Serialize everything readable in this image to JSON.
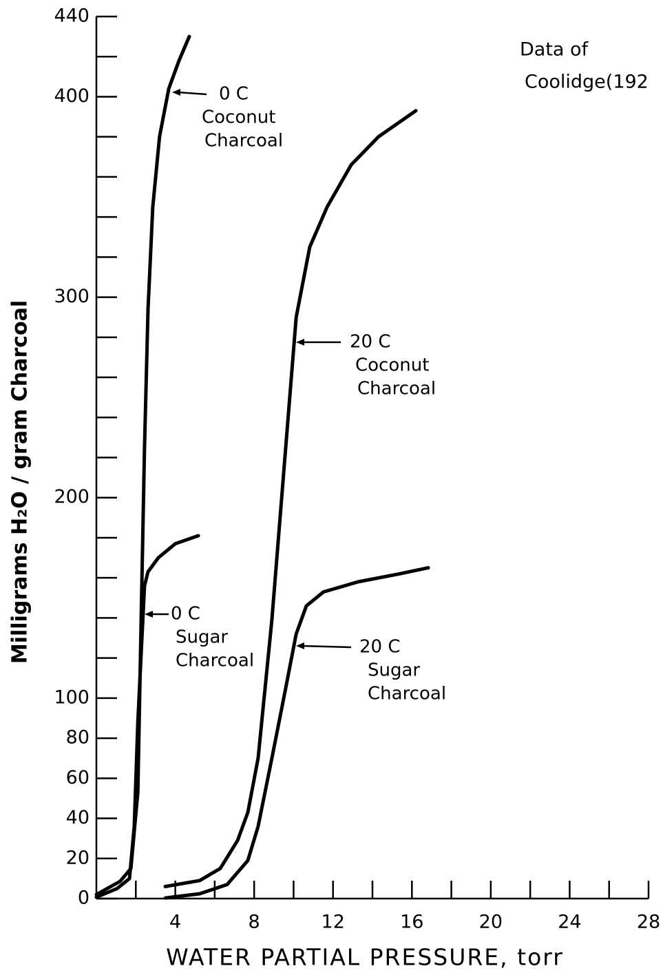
{
  "chart_data": {
    "type": "line",
    "xlabel": "WATER PARTIAL PRESSURE, torr",
    "ylabel": "Milligrams H₂O / gram Charcoal",
    "note": [
      "Data of",
      "Coolidge(192"
    ],
    "xlim": [
      0,
      28
    ],
    "xticks": [
      4,
      8,
      12,
      16,
      20,
      24,
      28
    ],
    "xminor": [
      2,
      6,
      10,
      14,
      18,
      22,
      26
    ],
    "ylim": [
      0,
      440
    ],
    "yticks": [
      0,
      20,
      40,
      60,
      80,
      100,
      200,
      300,
      400,
      440
    ],
    "yminor": [
      120,
      140,
      160,
      180,
      220,
      240,
      260,
      280,
      320,
      340,
      360,
      380,
      420
    ],
    "series": [
      {
        "name": [
          "0 C",
          "Coconut",
          "Charcoal"
        ],
        "color": "#000000",
        "x": [
          0,
          1.2,
          1.75,
          2.1,
          2.27,
          2.44,
          2.62,
          2.86,
          3.2,
          3.67,
          4.19,
          4.71
        ],
        "values": [
          2,
          8.6,
          15,
          53,
          139,
          225,
          294,
          345,
          380,
          404,
          418,
          430
        ]
      },
      {
        "name": [
          "0 C",
          "Sugar",
          "Charcoal"
        ],
        "color": "#000000",
        "x": [
          0,
          1.05,
          1.68,
          1.92,
          2.1,
          2.27,
          2.44,
          2.62,
          3.14,
          4.0,
          5.17
        ],
        "values": [
          0.7,
          5,
          10,
          36,
          88,
          122,
          156,
          163,
          170,
          177,
          181
        ]
      },
      {
        "name": [
          "20 C",
          "Coconut",
          "Charcoal"
        ],
        "color": "#000000",
        "x": [
          3.49,
          5.24,
          6.28,
          7.16,
          7.68,
          8.2,
          8.9,
          9.6,
          10.13,
          10.82,
          11.7,
          12.92,
          14.3,
          16.2
        ],
        "values": [
          6,
          9,
          15,
          29,
          43,
          70,
          139,
          225,
          290,
          325,
          345,
          366,
          380,
          393
        ]
      },
      {
        "name": [
          "20 C",
          "Sugar",
          "Charcoal"
        ],
        "color": "#000000",
        "x": [
          3.5,
          5.24,
          6.63,
          7.68,
          8.2,
          8.9,
          9.6,
          10.13,
          10.65,
          11.52,
          13.27,
          15.36,
          16.83
        ],
        "values": [
          0.3,
          2.4,
          7,
          19,
          36,
          70,
          105,
          132,
          146,
          153,
          158,
          162,
          165
        ]
      }
    ]
  }
}
